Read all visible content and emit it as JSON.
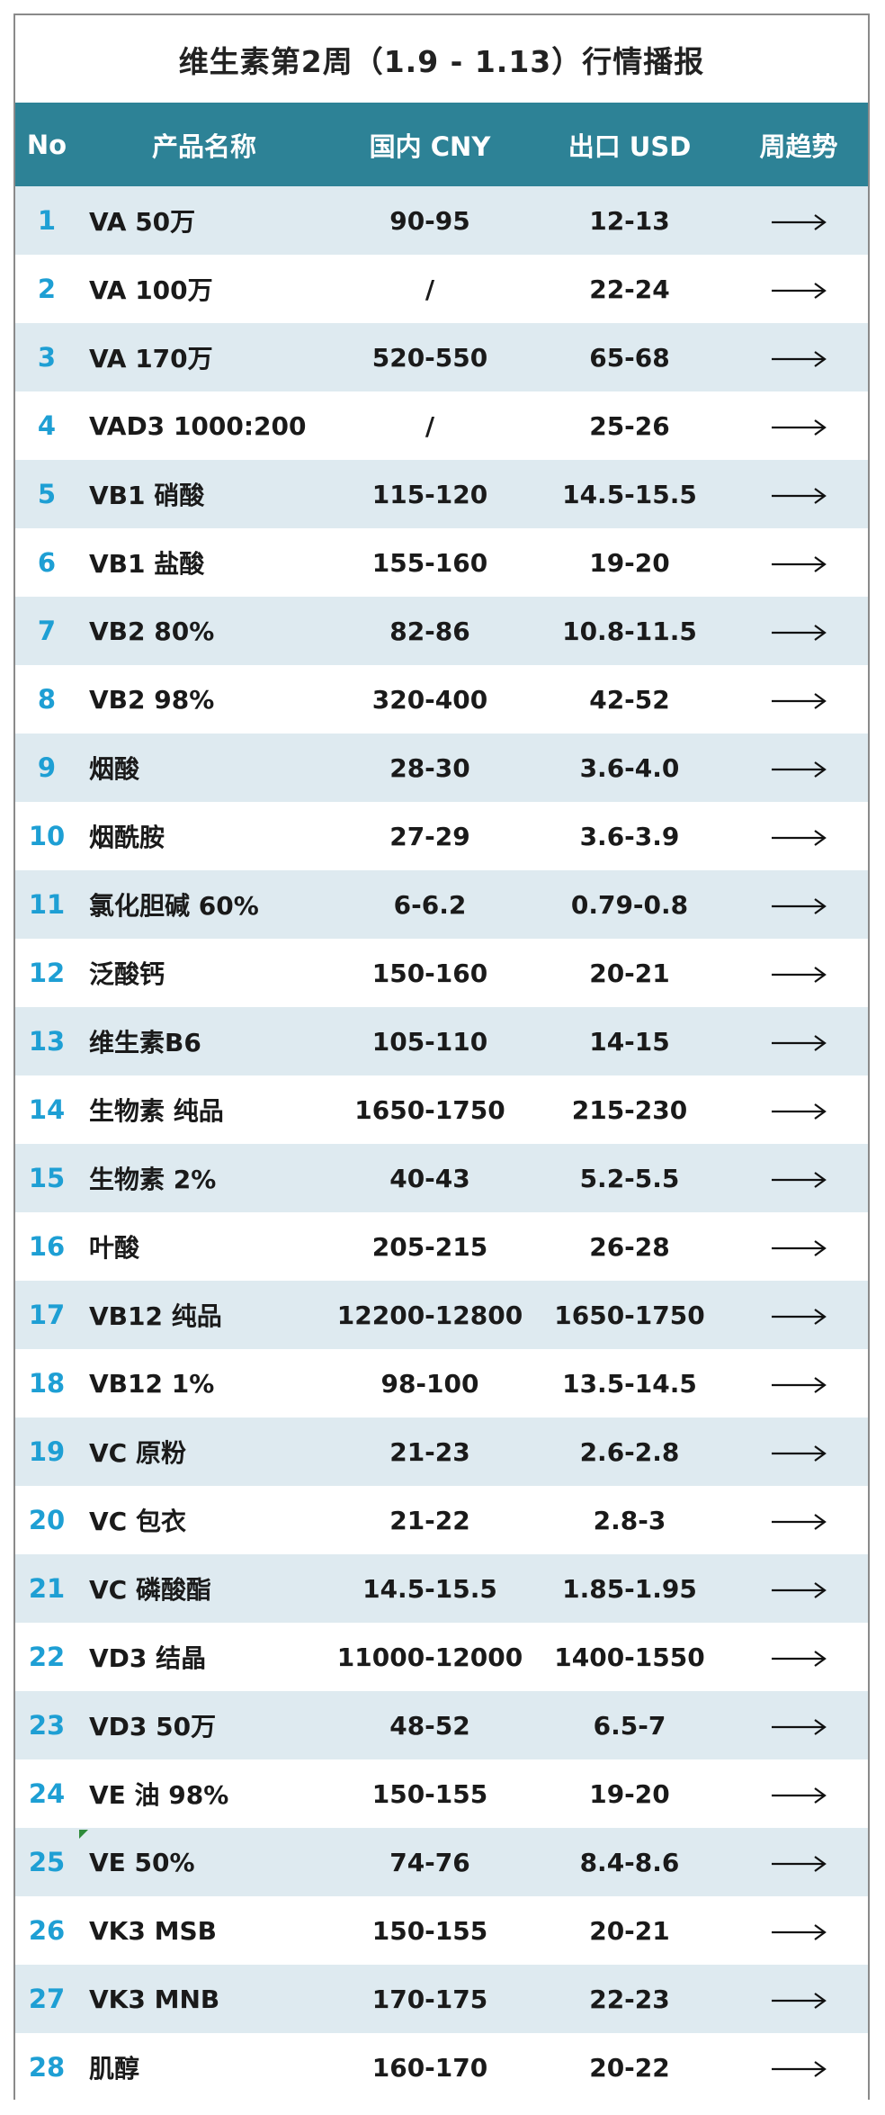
{
  "title": "维生素第2周（1.9 - 1.13）行情播报",
  "columns": {
    "no": "No",
    "name": "产品名称",
    "cny": "国内 CNY",
    "usd": "出口 USD",
    "trend": "周趋势"
  },
  "colors": {
    "header_bg": "#2d8296",
    "row_stripe": "#deeaf0",
    "number_accent": "#1e9fd4"
  },
  "rows": [
    {
      "no": "1",
      "name": "VA 50万",
      "cny": "90-95",
      "usd": "12-13",
      "trend": "flat-arrow-icon"
    },
    {
      "no": "2",
      "name": "VA 100万",
      "cny": "/",
      "usd": "22-24",
      "trend": "flat-arrow-icon"
    },
    {
      "no": "3",
      "name": "VA 170万",
      "cny": "520-550",
      "usd": "65-68",
      "trend": "flat-arrow-icon"
    },
    {
      "no": "4",
      "name": "VAD3 1000:200",
      "cny": "/",
      "usd": "25-26",
      "trend": "flat-arrow-icon"
    },
    {
      "no": "5",
      "name": "VB1 硝酸",
      "cny": "115-120",
      "usd": "14.5-15.5",
      "trend": "flat-arrow-icon"
    },
    {
      "no": "6",
      "name": "VB1 盐酸",
      "cny": "155-160",
      "usd": "19-20",
      "trend": "flat-arrow-icon"
    },
    {
      "no": "7",
      "name": "VB2 80%",
      "cny": "82-86",
      "usd": "10.8-11.5",
      "trend": "flat-arrow-icon"
    },
    {
      "no": "8",
      "name": "VB2 98%",
      "cny": "320-400",
      "usd": "42-52",
      "trend": "flat-arrow-icon"
    },
    {
      "no": "9",
      "name": "烟酸",
      "cny": "28-30",
      "usd": "3.6-4.0",
      "trend": "flat-arrow-icon"
    },
    {
      "no": "10",
      "name": "烟酰胺",
      "cny": "27-29",
      "usd": "3.6-3.9",
      "trend": "flat-arrow-icon"
    },
    {
      "no": "11",
      "name": "氯化胆碱 60%",
      "cny": "6-6.2",
      "usd": "0.79-0.8",
      "trend": "flat-arrow-icon"
    },
    {
      "no": "12",
      "name": "泛酸钙",
      "cny": "150-160",
      "usd": "20-21",
      "trend": "flat-arrow-icon"
    },
    {
      "no": "13",
      "name": "维生素B6",
      "cny": "105-110",
      "usd": "14-15",
      "trend": "flat-arrow-icon"
    },
    {
      "no": "14",
      "name": "生物素 纯品",
      "cny": "1650-1750",
      "usd": "215-230",
      "trend": "flat-arrow-icon"
    },
    {
      "no": "15",
      "name": "生物素 2%",
      "cny": "40-43",
      "usd": "5.2-5.5",
      "trend": "flat-arrow-icon"
    },
    {
      "no": "16",
      "name": "叶酸",
      "cny": "205-215",
      "usd": "26-28",
      "trend": "flat-arrow-icon"
    },
    {
      "no": "17",
      "name": "VB12 纯品",
      "cny": "12200-12800",
      "usd": "1650-1750",
      "trend": "flat-arrow-icon"
    },
    {
      "no": "18",
      "name": "VB12 1%",
      "cny": "98-100",
      "usd": "13.5-14.5",
      "trend": "flat-arrow-icon"
    },
    {
      "no": "19",
      "name": "VC 原粉",
      "cny": "21-23",
      "usd": "2.6-2.8",
      "trend": "flat-arrow-icon"
    },
    {
      "no": "20",
      "name": "VC 包衣",
      "cny": "21-22",
      "usd": "2.8-3",
      "trend": "flat-arrow-icon"
    },
    {
      "no": "21",
      "name": "VC 磷酸酯",
      "cny": "14.5-15.5",
      "usd": "1.85-1.95",
      "trend": "flat-arrow-icon"
    },
    {
      "no": "22",
      "name": "VD3 结晶",
      "cny": "11000-12000",
      "usd": "1400-1550",
      "trend": "flat-arrow-icon"
    },
    {
      "no": "23",
      "name": "VD3 50万",
      "cny": "48-52",
      "usd": "6.5-7",
      "trend": "flat-arrow-icon"
    },
    {
      "no": "24",
      "name": "VE 油 98%",
      "cny": "150-155",
      "usd": "19-20",
      "trend": "flat-arrow-icon"
    },
    {
      "no": "25",
      "name": "VE 50%",
      "cny": "74-76",
      "usd": "8.4-8.6",
      "trend": "flat-arrow-icon"
    },
    {
      "no": "26",
      "name": "VK3 MSB",
      "cny": "150-155",
      "usd": "20-21",
      "trend": "flat-arrow-icon"
    },
    {
      "no": "27",
      "name": "VK3 MNB",
      "cny": "170-175",
      "usd": "22-23",
      "trend": "flat-arrow-icon"
    },
    {
      "no": "28",
      "name": "肌醇",
      "cny": "160-170",
      "usd": "20-22",
      "trend": "flat-arrow-icon"
    }
  ]
}
